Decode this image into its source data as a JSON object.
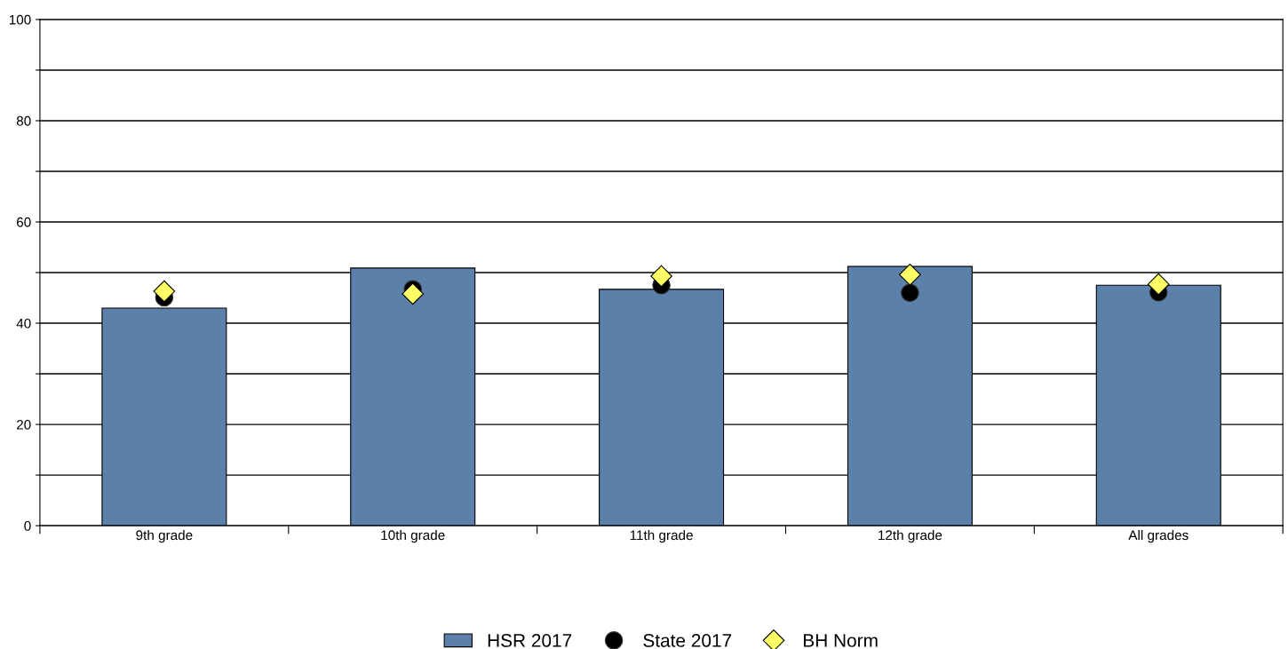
{
  "chart_data": {
    "type": "bar",
    "categories": [
      "9th grade",
      "10th grade",
      "11th grade",
      "12th grade",
      "All grades"
    ],
    "series": [
      {
        "name": "HSR 2017",
        "color": "#5b80aa",
        "values": [
          43.0,
          50.9,
          46.7,
          51.2,
          47.5
        ]
      },
      {
        "name": "State 2017",
        "type": "scatter",
        "marker": "circle",
        "color": "#000000",
        "values": [
          45.1,
          46.7,
          47.5,
          46.0,
          46.1
        ]
      },
      {
        "name": "BH Norm",
        "type": "scatter",
        "marker": "diamond",
        "color": "#ffff66",
        "values": [
          46.3,
          45.8,
          49.3,
          49.6,
          47.7
        ]
      }
    ],
    "ylim": [
      0,
      100
    ],
    "yticks": [
      0,
      {
        "value": 10,
        "label": null
      },
      20,
      {
        "value": 30,
        "label": null
      },
      40,
      {
        "value": 50,
        "label": null
      },
      60,
      {
        "value": 70,
        "label": null
      },
      80,
      {
        "value": 90,
        "label": null
      },
      100
    ],
    "grid": "y",
    "legend": "bottom"
  }
}
